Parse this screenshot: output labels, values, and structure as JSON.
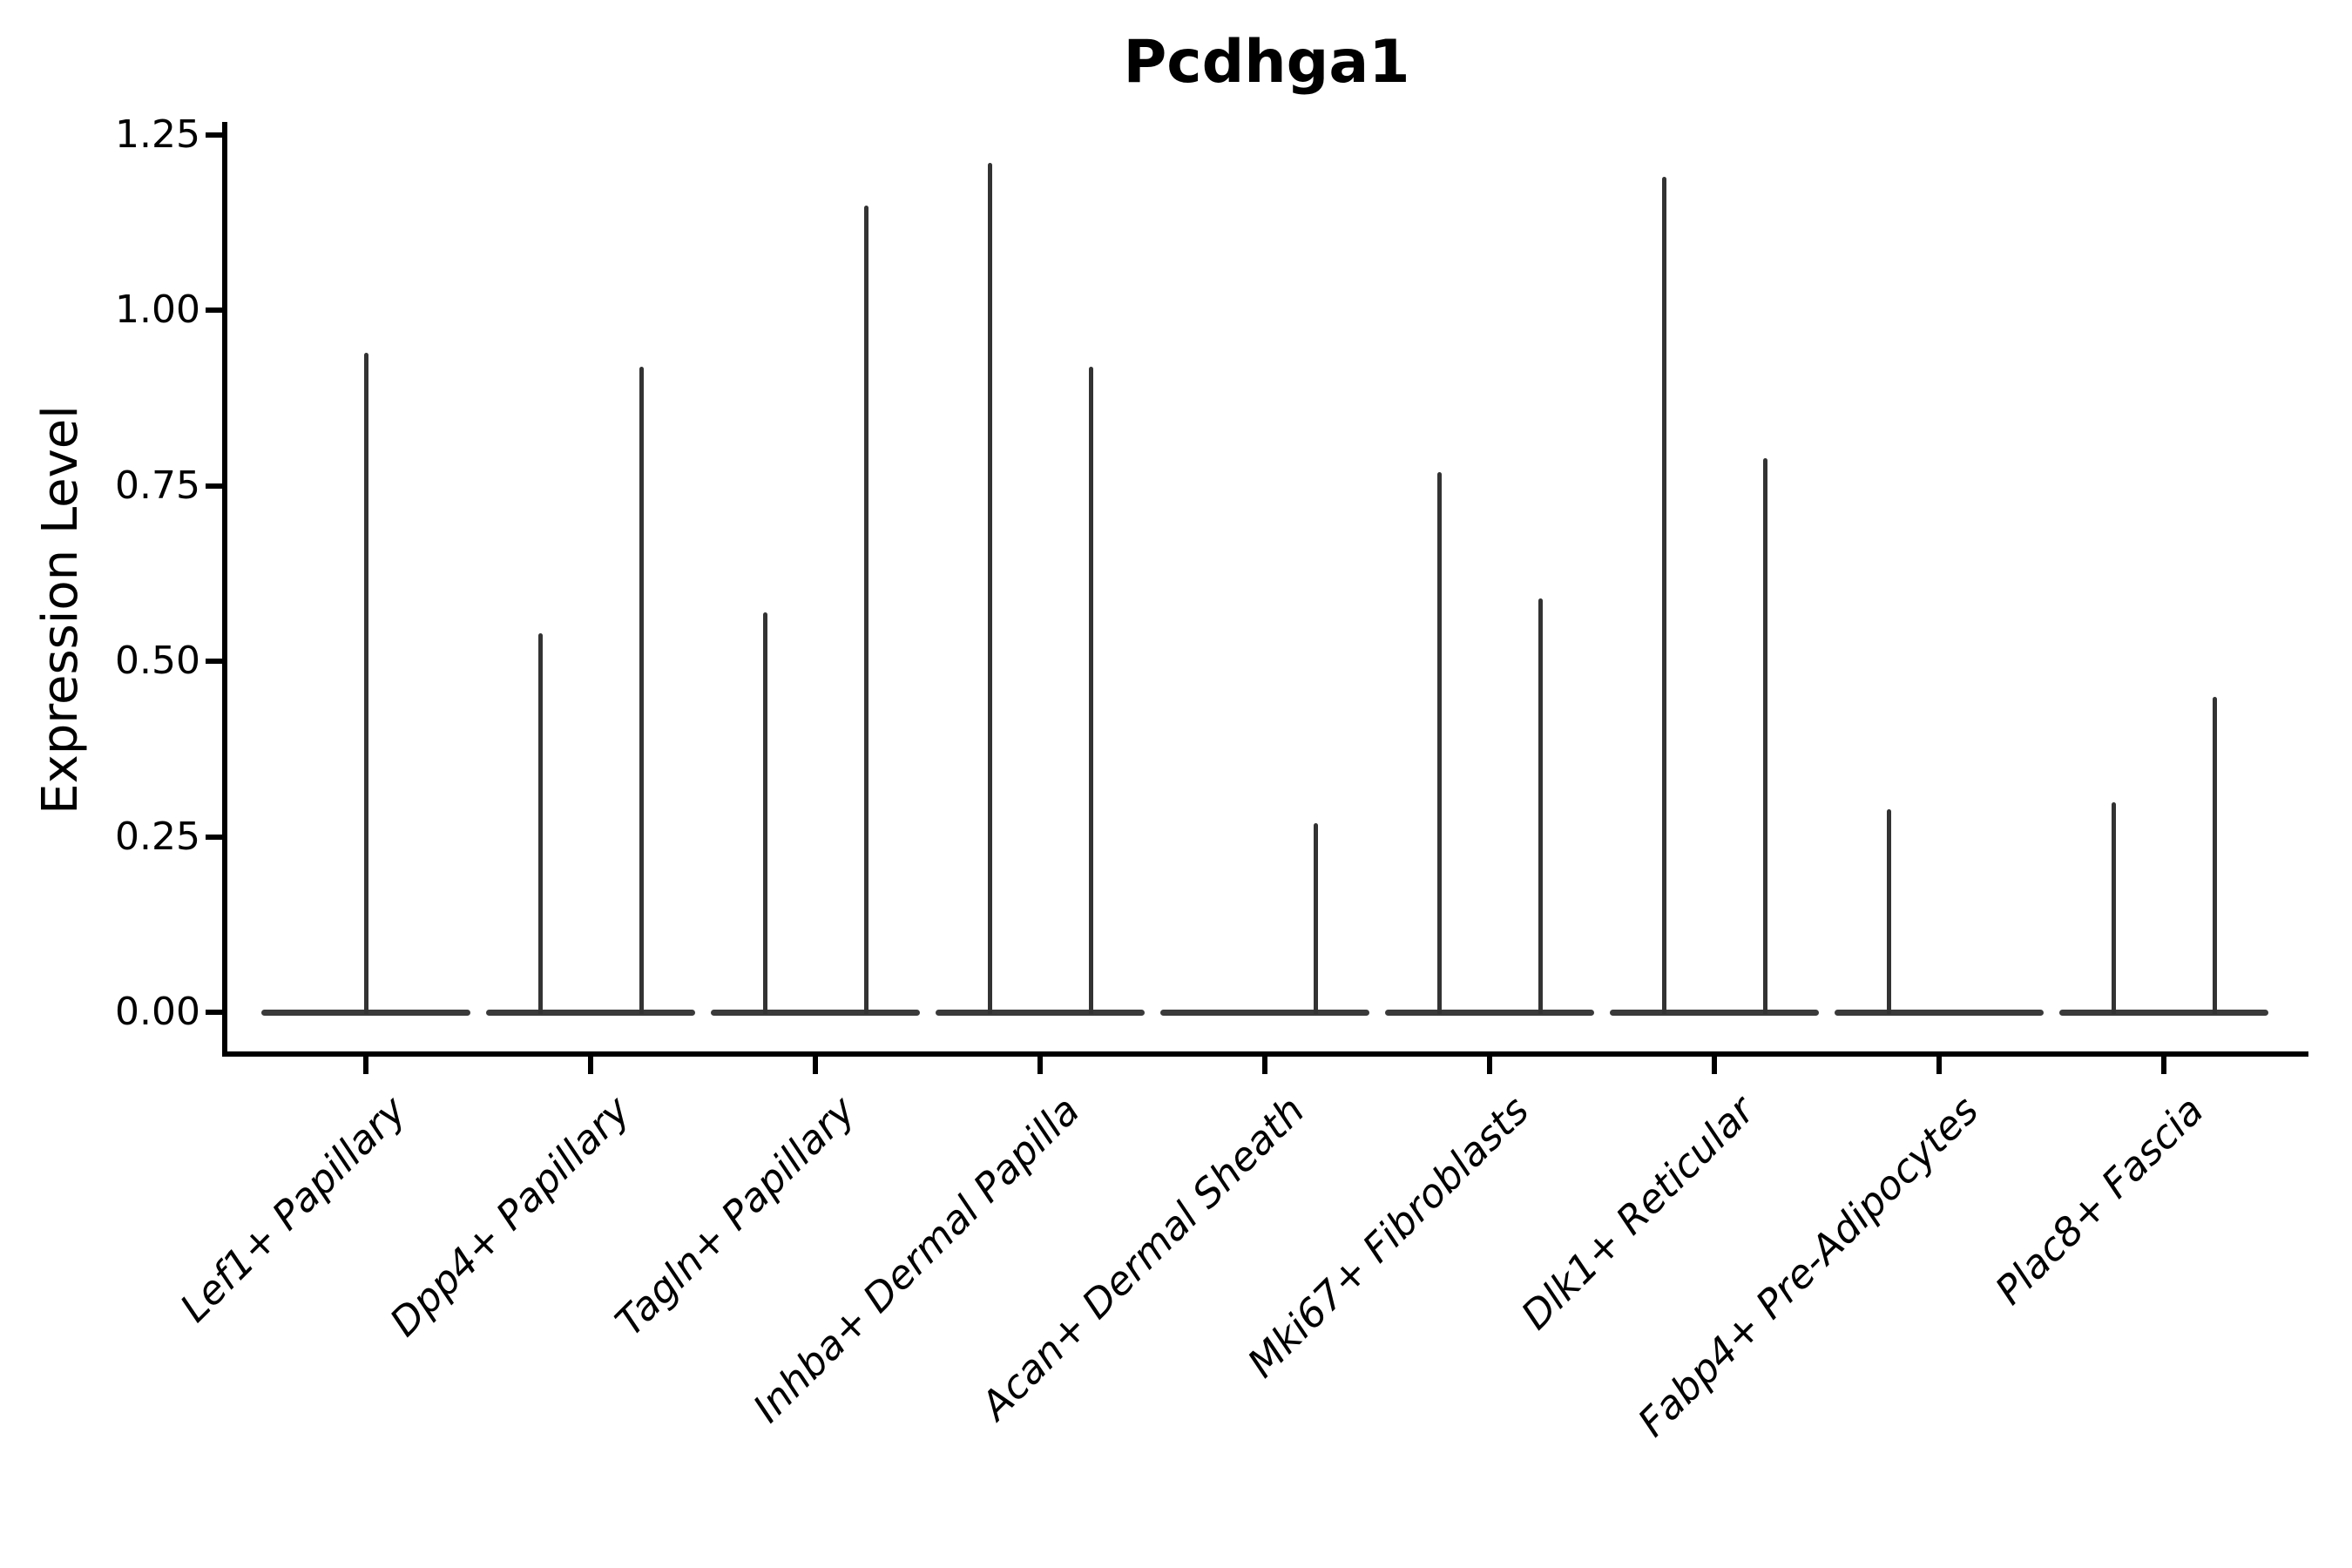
{
  "figure": {
    "title": "Pcdhga1",
    "background_color": "#ffffff"
  },
  "chart_data": {
    "type": "violin",
    "title": "Pcdhga1",
    "xlabel": "",
    "ylabel": "Expression Level",
    "ylim": [
      -0.06,
      1.27
    ],
    "grid": false,
    "legend": "none",
    "axis_color": "#000000",
    "violin_color": "#333333",
    "yticks": [
      {
        "label": "0.00",
        "value": 0.0
      },
      {
        "label": "0.25",
        "value": 0.25
      },
      {
        "label": "0.50",
        "value": 0.5
      },
      {
        "label": "0.75",
        "value": 0.75
      },
      {
        "label": "1.00",
        "value": 1.0
      },
      {
        "label": "1.25",
        "value": 1.25
      }
    ],
    "categories": [
      "Lef1+ Papillary",
      "Dpp4+ Papillary",
      "Tagln+ Papillary",
      "Inhba+ Dermal Papilla",
      "Acan+ Dermal Sheath",
      "Mki67+ Fibroblasts",
      "Dlk1+ Reticular",
      "Fabp4+ Pre-Adipocytes",
      "Plac8+ Fascia"
    ],
    "description": "Sparse single-cell expression: each category shows a flat density bar at 0 spanning the band plus thin needle spikes reaching the maximum expression of sub-violins.",
    "baseline": {
      "value": 0.0,
      "base_halfwidth_fraction": 0.465
    },
    "violins": [
      {
        "category": "Lef1+ Papillary",
        "spikes": [
          {
            "pos": "center",
            "offset": 0.0,
            "max": 0.94
          }
        ]
      },
      {
        "category": "Dpp4+ Papillary",
        "spikes": [
          {
            "pos": "left",
            "offset": -0.225,
            "max": 0.54
          },
          {
            "pos": "right",
            "offset": 0.225,
            "max": 0.92
          }
        ]
      },
      {
        "category": "Tagln+ Papillary",
        "spikes": [
          {
            "pos": "left",
            "offset": -0.225,
            "max": 0.57
          },
          {
            "pos": "right",
            "offset": 0.225,
            "max": 1.15
          }
        ]
      },
      {
        "category": "Inhba+ Dermal Papilla",
        "spikes": [
          {
            "pos": "left",
            "offset": -0.225,
            "max": 1.21
          },
          {
            "pos": "right",
            "offset": 0.225,
            "max": 0.92
          }
        ]
      },
      {
        "category": "Acan+ Dermal Sheath",
        "spikes": [
          {
            "pos": "right",
            "offset": 0.225,
            "max": 0.27
          }
        ]
      },
      {
        "category": "Mki67+ Fibroblasts",
        "spikes": [
          {
            "pos": "left",
            "offset": -0.225,
            "max": 0.77
          },
          {
            "pos": "right",
            "offset": 0.225,
            "max": 0.59
          }
        ]
      },
      {
        "category": "Dlk1+ Reticular",
        "spikes": [
          {
            "pos": "left",
            "offset": -0.225,
            "max": 1.19
          },
          {
            "pos": "right",
            "offset": 0.225,
            "max": 0.79
          }
        ]
      },
      {
        "category": "Fabp4+ Pre-Adipocytes",
        "spikes": [
          {
            "pos": "left",
            "offset": -0.225,
            "max": 0.29
          }
        ]
      },
      {
        "category": "Plac8+ Fascia",
        "spikes": [
          {
            "pos": "left",
            "offset": -0.225,
            "max": 0.3
          },
          {
            "pos": "right",
            "offset": 0.225,
            "max": 0.45
          }
        ]
      }
    ]
  }
}
